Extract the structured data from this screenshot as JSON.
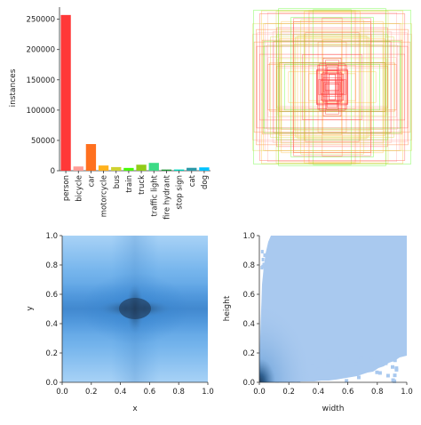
{
  "chart_data": [
    {
      "type": "bar",
      "ylabel": "instances",
      "xlabel": "",
      "categories": [
        "person",
        "bicycle",
        "car",
        "motorcycle",
        "bus",
        "train",
        "truck",
        "traffic light",
        "fire hydrant",
        "stop sign",
        "cat",
        "dog"
      ],
      "values": [
        257000,
        7000,
        44000,
        8600,
        6000,
        4600,
        9900,
        12900,
        1900,
        2000,
        4800,
        5500
      ],
      "colors": [
        "#ff3838",
        "#ff9d97",
        "#ff701f",
        "#ffb21d",
        "#cfd231",
        "#48f90a",
        "#92cc17",
        "#3ddb86",
        "#1a9334",
        "#00d4bb",
        "#2c99a8",
        "#00c2ff"
      ],
      "ylim": [
        0,
        270000
      ],
      "yticks": [
        0,
        50000,
        100000,
        150000,
        200000,
        250000
      ]
    },
    {
      "type": "other",
      "description_kind": "bounding-box-overlay",
      "box_count_drawn": 60,
      "colors": [
        "#ff3838",
        "#ff9d97",
        "#ff701f",
        "#ffb21d",
        "#cfd231",
        "#48f90a"
      ]
    },
    {
      "type": "heatmap",
      "xlabel": "x",
      "ylabel": "y",
      "xlim": [
        0,
        1
      ],
      "ylim": [
        0,
        1
      ],
      "ticks": [
        "0.0",
        "0.2",
        "0.4",
        "0.6",
        "0.8",
        "1.0"
      ],
      "tick_values": [
        0,
        0.2,
        0.4,
        0.6,
        0.8,
        1.0
      ],
      "peak": [
        0.5,
        0.5
      ],
      "color_low": "#a9d0f5",
      "color_high": "#1f3b5c"
    },
    {
      "type": "heatmap",
      "xlabel": "width",
      "ylabel": "height",
      "xlim": [
        0,
        1
      ],
      "ylim": [
        0,
        1
      ],
      "ticks": [
        "0.0",
        "0.2",
        "0.4",
        "0.6",
        "0.8",
        "1.0"
      ],
      "tick_values": [
        0,
        0.2,
        0.4,
        0.6,
        0.8,
        1.0
      ],
      "peak": [
        0.01,
        0.03
      ],
      "color_low": "#a9c9ef",
      "color_high": "#1f3b5c"
    }
  ]
}
